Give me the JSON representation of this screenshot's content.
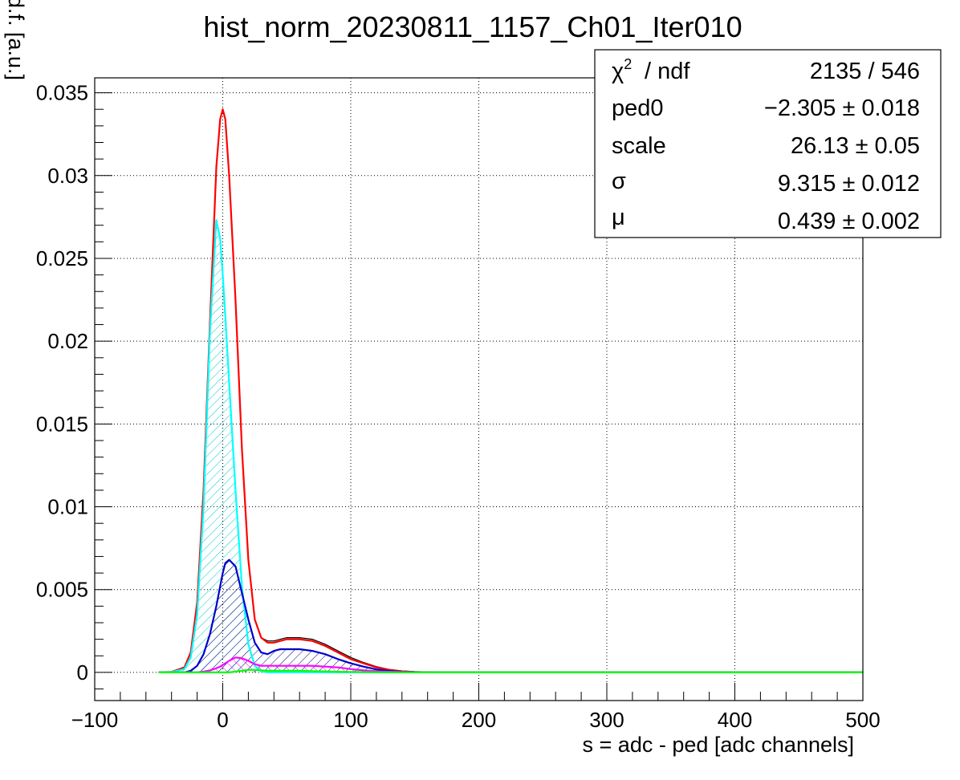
{
  "chart_data": {
    "type": "line",
    "title": "hist_norm_20230811_1157_Ch01_Iter010",
    "xlabel": "s = adc - ped [adc channels]",
    "ylabel": "dN/ds p.d.f. [a.u.]",
    "xlim": [
      -100,
      500
    ],
    "ylim": [
      -0.0017,
      0.0359
    ],
    "x_ticks": [
      -100,
      0,
      100,
      200,
      300,
      400,
      500
    ],
    "x_tick_labels": [
      "−100",
      "0",
      "100",
      "200",
      "300",
      "400",
      "500"
    ],
    "y_ticks": [
      0,
      0.005,
      0.01,
      0.015,
      0.02,
      0.025,
      0.03,
      0.035
    ],
    "y_tick_labels": [
      "0",
      "0.005",
      "0.01",
      "0.015",
      "0.02",
      "0.025",
      "0.03",
      "0.035"
    ],
    "grid": true,
    "x": [
      -50,
      -40,
      -30,
      -25,
      -20,
      -15,
      -10,
      -5,
      -2,
      0,
      2,
      5,
      10,
      15,
      20,
      25,
      30,
      35,
      40,
      45,
      50,
      55,
      60,
      70,
      80,
      90,
      100,
      110,
      120,
      130,
      140,
      150,
      160,
      180,
      200,
      250,
      300,
      400,
      500
    ],
    "series": [
      {
        "color": "#000000",
        "values": [
          0,
          3e-05,
          0.0003,
          0.0012,
          0.0042,
          0.011,
          0.021,
          0.0305,
          0.0334,
          0.034,
          0.0334,
          0.03,
          0.0225,
          0.0135,
          0.0068,
          0.0032,
          0.0021,
          0.0019,
          0.0019,
          0.002,
          0.0021,
          0.0021,
          0.0021,
          0.002,
          0.0017,
          0.0013,
          0.0009,
          0.0006,
          0.00035,
          0.00018,
          9e-05,
          4e-05,
          2e-05,
          0,
          0,
          0,
          0,
          0,
          0
        ]
      },
      {
        "color": "#ff0000",
        "values": [
          0,
          3e-05,
          0.0003,
          0.0012,
          0.0042,
          0.011,
          0.021,
          0.0305,
          0.0334,
          0.034,
          0.0334,
          0.03,
          0.0225,
          0.0135,
          0.0068,
          0.0032,
          0.0021,
          0.0018,
          0.0018,
          0.0019,
          0.002,
          0.002,
          0.002,
          0.0019,
          0.0016,
          0.0012,
          0.0008,
          0.00055,
          0.0003,
          0.00015,
          7e-05,
          3e-05,
          1e-05,
          0,
          0,
          0,
          0,
          0,
          0
        ]
      },
      {
        "color": "#00ffff",
        "values": [
          0,
          2e-05,
          0.0002,
          0.0009,
          0.0035,
          0.01,
          0.0205,
          0.0273,
          0.0262,
          0.024,
          0.0215,
          0.0175,
          0.011,
          0.0052,
          0.0017,
          0.0004,
          6e-05,
          0,
          0,
          0,
          0,
          0,
          0,
          0,
          0,
          0,
          0,
          0,
          0,
          0,
          0,
          0,
          0,
          0,
          0,
          0,
          0,
          0,
          0
        ]
      },
      {
        "color": "#0000cc",
        "values": [
          0,
          0,
          0,
          0.0001,
          0.0004,
          0.0011,
          0.0023,
          0.004,
          0.0052,
          0.006,
          0.0066,
          0.0068,
          0.0064,
          0.0048,
          0.0032,
          0.0018,
          0.0012,
          0.0011,
          0.0013,
          0.0014,
          0.0014,
          0.0014,
          0.0014,
          0.0013,
          0.0011,
          0.0008,
          0.00055,
          0.00035,
          0.00018,
          9e-05,
          4e-05,
          2e-05,
          1e-05,
          0,
          0,
          0,
          0,
          0,
          0
        ]
      },
      {
        "color": "#ff00ff",
        "values": [
          0,
          0,
          0,
          0,
          0,
          5e-05,
          0.00012,
          0.00025,
          0.00035,
          0.00045,
          0.00055,
          0.0007,
          0.0009,
          0.00085,
          0.0007,
          0.0005,
          0.0004,
          0.0004,
          0.0004,
          0.0004,
          0.0004,
          0.0004,
          0.0004,
          0.0004,
          0.00035,
          0.0003,
          0.0002,
          0.00012,
          7e-05,
          4e-05,
          2e-05,
          1e-05,
          0,
          0,
          0,
          0,
          0,
          0,
          0
        ]
      },
      {
        "color": "#00ff00",
        "values": [
          0,
          0,
          0,
          0,
          0,
          0,
          0,
          0,
          0,
          0,
          0,
          0,
          5e-05,
          0.0001,
          0.00015,
          0.00015,
          0.00012,
          0.0001,
          0.0001,
          0.0001,
          0.0001,
          0.0001,
          0.0001,
          8e-05,
          6e-05,
          4e-05,
          3e-05,
          2e-05,
          1e-05,
          0,
          0,
          0,
          0,
          0,
          0,
          0,
          0,
          0,
          0
        ]
      }
    ],
    "stats_box": {
      "position": "top-right",
      "rows": [
        {
          "name": "/ ndf",
          "value": "2135 / 546"
        },
        {
          "name": "ped0",
          "value": "−2.305 ± 0.018"
        },
        {
          "name": "scale",
          "value": "26.13 ± 0.05"
        },
        {
          "name": "σ",
          "value": "9.315 ± 0.012"
        },
        {
          "name": "μ",
          "value": "0.439 ± 0.002"
        }
      ]
    }
  }
}
